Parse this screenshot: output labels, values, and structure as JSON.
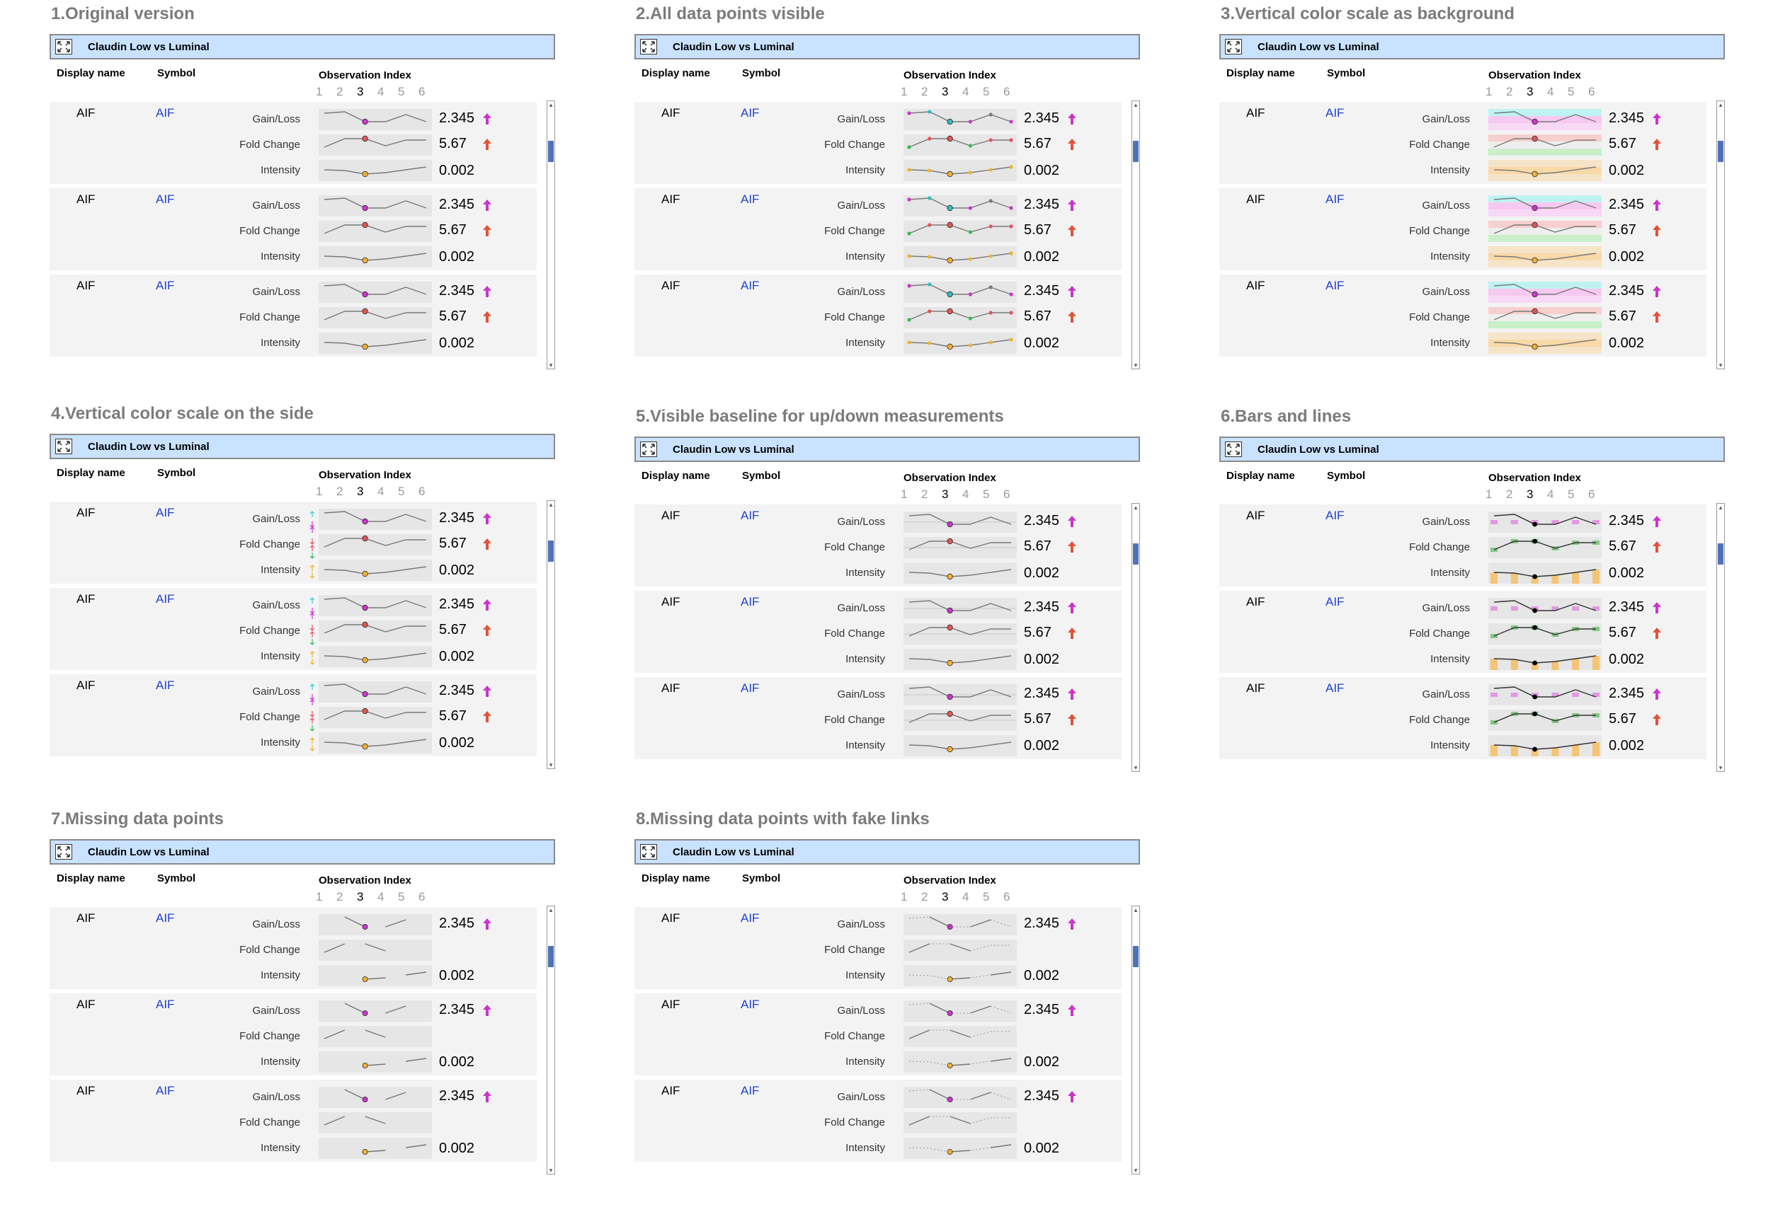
{
  "header": {
    "title": "Claudin Low vs Luminal"
  },
  "columns": {
    "display_name": "Display name",
    "symbol": "Symbol",
    "observation_index": "Observation Index"
  },
  "observation_indices": [
    "1",
    "2",
    "3",
    "4",
    "5",
    "6"
  ],
  "selected_index": "3",
  "measures": [
    {
      "label": "Gain/Loss",
      "value": "2.345",
      "arrow": "up",
      "arrow_color": "#cc33cc",
      "color": "#cc33cc"
    },
    {
      "label": "Fold Change",
      "value": "5.67",
      "arrow": "up",
      "arrow_color": "#e0533a",
      "color": "#e05555"
    },
    {
      "label": "Intensity",
      "value": "0.002",
      "arrow": "",
      "arrow_color": "",
      "color": "#f0b030"
    }
  ],
  "rows": [
    {
      "display_name": "AIF",
      "symbol": "AIF"
    },
    {
      "display_name": "AIF",
      "symbol": "AIF"
    },
    {
      "display_name": "AIF",
      "symbol": "AIF"
    }
  ],
  "panels": [
    {
      "title": "1.Original version",
      "variant": "original"
    },
    {
      "title": "2.All data points visible",
      "variant": "allpoints"
    },
    {
      "title": "3.Vertical color scale as background",
      "variant": "background"
    },
    {
      "title": "4.Vertical color scale on the side",
      "variant": "side"
    },
    {
      "title": "5.Visible baseline for up/down measurements",
      "variant": "baseline"
    },
    {
      "title": "6.Bars and lines",
      "variant": "bars"
    },
    {
      "title": "7.Missing data points",
      "variant": "missing"
    },
    {
      "title": "8.Missing data points with fake links",
      "variant": "fakelinks"
    }
  ],
  "colors": {
    "header_bar": "#c9e2ff",
    "record_bg": "#f3f3f3",
    "symbol_link": "#1f3fcc",
    "title_gray": "#7b7b7b",
    "scroll_thumb": "#4e72b8"
  },
  "icons": [
    "expand-icon",
    "arrow-up-icon",
    "scroll-up-icon",
    "scroll-down-icon"
  ]
}
